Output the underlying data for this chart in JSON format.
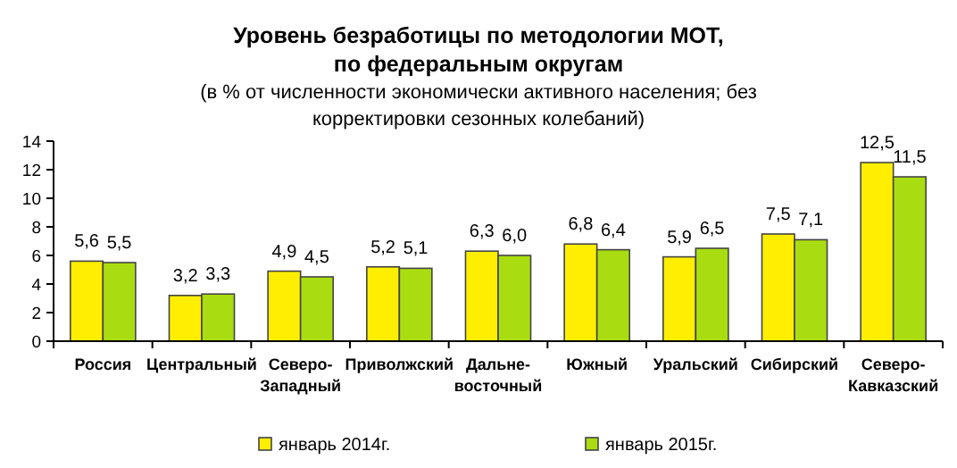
{
  "chart_data": {
    "type": "bar",
    "title": "Уровень безработицы по методологии МОТ,\nпо федеральным округам",
    "subtitle": "(в % от численности экономически активного населения; без\nкорректировки сезонных колебаний)",
    "categories": [
      "Россия",
      "Центральный",
      "Северо-Западный",
      "Приволжский",
      "Дальне-восточный",
      "Южный",
      "Уральский",
      "Сибирский",
      "Северо-Кавказский"
    ],
    "series": [
      {
        "name": "январь 2014г.",
        "color": "#ffee00",
        "values": [
          5.6,
          3.2,
          4.9,
          5.2,
          6.3,
          6.8,
          5.9,
          7.5,
          12.5
        ],
        "value_labels": [
          "5,6",
          "3,2",
          "4,9",
          "5,2",
          "6,3",
          "6,8",
          "5,9",
          "7,5",
          "12,5"
        ]
      },
      {
        "name": "январь 2015г.",
        "color": "#aadd11",
        "values": [
          5.5,
          3.3,
          4.5,
          5.1,
          6.0,
          6.4,
          6.5,
          7.1,
          11.5
        ],
        "value_labels": [
          "5,5",
          "3,3",
          "4,5",
          "5,1",
          "6,0",
          "6,4",
          "6,5",
          "7,1",
          "11,5"
        ]
      }
    ],
    "ylim": [
      0,
      14
    ],
    "yticks": [
      0,
      2,
      4,
      6,
      8,
      10,
      12,
      14
    ],
    "grid": false,
    "legend": "bottom"
  }
}
